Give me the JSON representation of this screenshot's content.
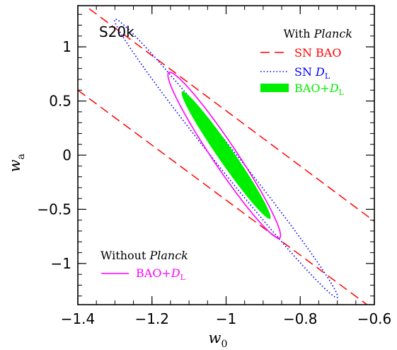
{
  "chart_data": {
    "type": "scatter",
    "panel_label": "S20k",
    "xlabel": "w",
    "xlabel_sub": "0",
    "ylabel": "w",
    "ylabel_sub": "a",
    "xlim": [
      -1.4,
      -0.6
    ],
    "ylim": [
      -1.38,
      1.38
    ],
    "xticks": [
      -1.4,
      -1.2,
      -1,
      -0.8,
      -0.6
    ],
    "xtick_labels": [
      "−1.4",
      "−1.2",
      "−1",
      "−0.8",
      "−0.6"
    ],
    "yticks": [
      -1,
      -0.5,
      0,
      0.5,
      1
    ],
    "ytick_labels": [
      "−1",
      "−0.5",
      "0",
      "0.5",
      "1"
    ],
    "legend_with": {
      "heading": "With ",
      "heading_it": "Planck",
      "entries": [
        {
          "pre": "SN BAO",
          "it": "",
          "sub": "",
          "color": "#ff0000",
          "style": "dashed"
        },
        {
          "pre": "SN ",
          "it": "D",
          "sub": "L",
          "color": "#0000ff",
          "style": "dotted"
        },
        {
          "pre": "BAO+",
          "it": "D",
          "sub": "L",
          "color": "#00ee00",
          "style": "filled"
        }
      ]
    },
    "legend_without": {
      "heading": "Without ",
      "heading_it": "Planck",
      "entries": [
        {
          "pre": "BAO+",
          "it": "D",
          "sub": "L",
          "color": "#ff00ff",
          "style": "solid"
        }
      ]
    },
    "series": [
      {
        "label": "SN BAO",
        "kind": "band",
        "color": "#ff0000",
        "upper": {
          "x": [
            -1.4,
            -0.6
          ],
          "y": [
            1.43,
            -0.61
          ]
        },
        "lower": {
          "x": [
            -1.4,
            -0.6
          ],
          "y": [
            0.6,
            -1.43
          ]
        }
      },
      {
        "label": "SN D_L",
        "kind": "ellipse",
        "color": "#0000ff",
        "center": [
          -1.0,
          -0.03
        ],
        "semi_major": 1.32,
        "semi_minor": 0.035,
        "slope": -4.3
      },
      {
        "label": "BAO+D_L (with Planck)",
        "kind": "ellipse",
        "color": "#00ee00",
        "filled": true,
        "center": [
          -1.0,
          0.0
        ],
        "semi_major": 0.6,
        "semi_minor": 0.025,
        "slope": -5.0
      },
      {
        "label": "BAO+D_L (without Planck)",
        "kind": "ellipse",
        "color": "#ff00ff",
        "center": [
          -1.005,
          0.0
        ],
        "semi_major": 0.78,
        "semi_minor": 0.038,
        "slope": -5.2
      }
    ]
  }
}
